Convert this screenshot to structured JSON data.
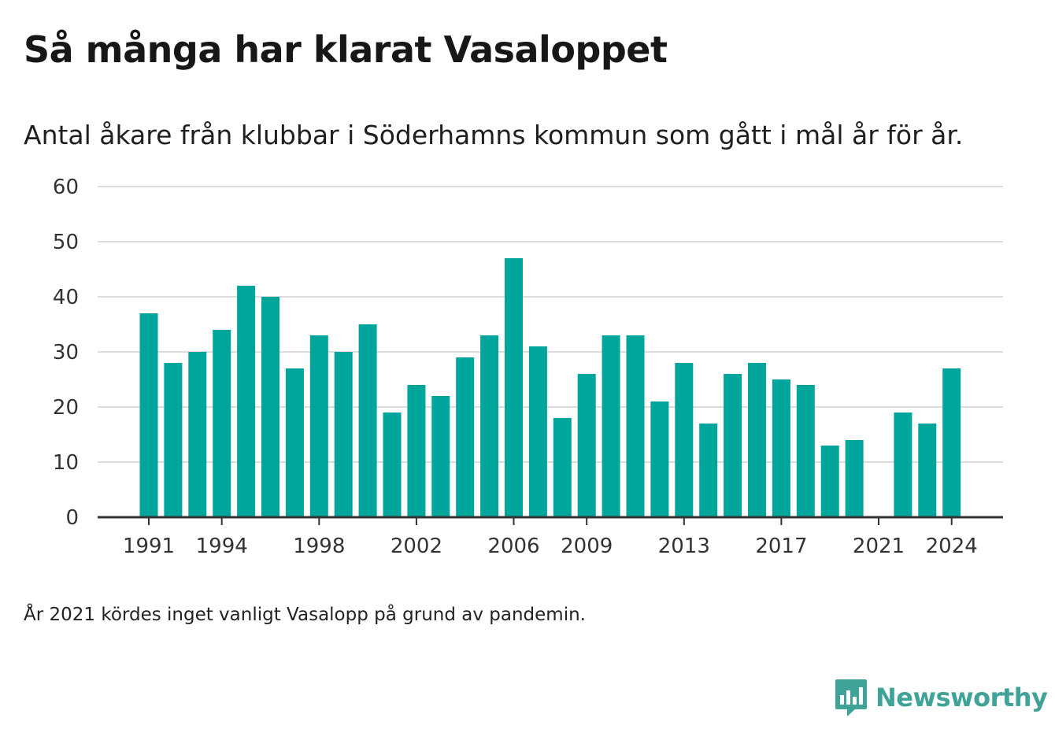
{
  "title": "Så många har klarat Vasaloppet",
  "subtitle": "Antal åkare från klubbar i Söderhamns kommun som gått i mål år för år.",
  "footnote": "År 2021 kördes inget vanligt Vasalopp på grund av pandemin.",
  "brand": {
    "name": "Newsworthy",
    "color": "#3fa497"
  },
  "colors": {
    "bar": "#00a59b",
    "grid": "#dddddd",
    "axis": "#333333"
  },
  "chart_data": {
    "type": "bar",
    "title": "Så många har klarat Vasaloppet",
    "subtitle": "Antal åkare från klubbar i Söderhamns kommun som gått i mål år för år.",
    "xlabel": "",
    "ylabel": "",
    "ylim": [
      0,
      60
    ],
    "yticks": [
      0,
      10,
      20,
      30,
      40,
      50,
      60
    ],
    "xticks": [
      1991,
      1994,
      1998,
      2002,
      2006,
      2009,
      2013,
      2017,
      2021,
      2024
    ],
    "grid": true,
    "categories": [
      1991,
      1992,
      1993,
      1994,
      1995,
      1996,
      1997,
      1998,
      1999,
      2000,
      2001,
      2002,
      2003,
      2004,
      2005,
      2006,
      2007,
      2008,
      2009,
      2010,
      2011,
      2012,
      2013,
      2014,
      2015,
      2016,
      2017,
      2018,
      2019,
      2020,
      2021,
      2022,
      2023,
      2024
    ],
    "values": [
      37,
      28,
      30,
      34,
      42,
      40,
      27,
      33,
      30,
      35,
      19,
      24,
      22,
      29,
      33,
      47,
      31,
      18,
      26,
      33,
      33,
      21,
      28,
      17,
      26,
      28,
      25,
      24,
      13,
      14,
      0,
      19,
      17,
      27
    ]
  }
}
